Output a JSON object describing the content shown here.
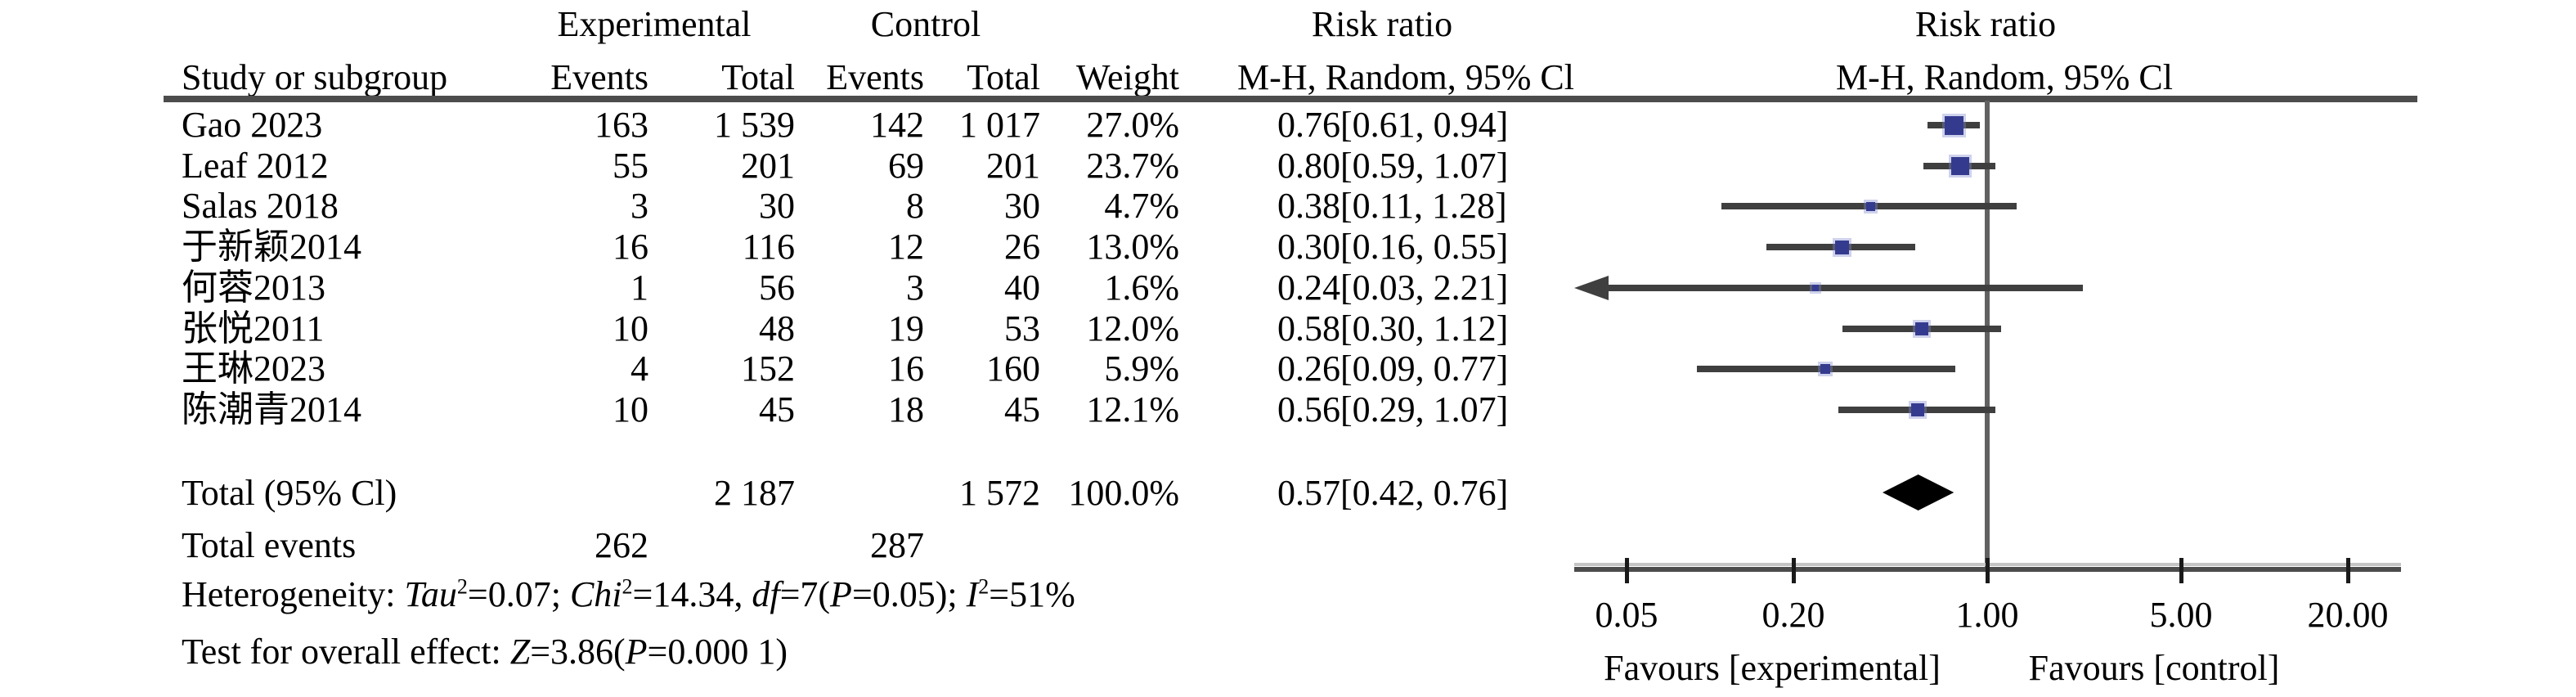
{
  "table": {
    "group_headers": {
      "experimental": "Experimental",
      "control": "Control",
      "risk_ratio_left": "Risk ratio",
      "risk_ratio_right": "Risk ratio"
    },
    "columns": {
      "study": "Study or subgroup",
      "events_exp": "Events",
      "total_exp": "Total",
      "events_ctrl": "Events",
      "total_ctrl": "Total",
      "weight": "Weight",
      "mh_left": "M-H, Random, 95% Cl",
      "mh_right": "M-H, Random, 95% Cl"
    }
  },
  "chart_data": {
    "type": "forest",
    "effect_measure": "Risk ratio",
    "method": "M-H, Random, 95% Cl",
    "x_scale": "log",
    "x_ticks": [
      "0.05",
      "0.20",
      "1.00",
      "5.00",
      "20.00"
    ],
    "x_tick_values": [
      0.05,
      0.2,
      1.0,
      5.0,
      20.0
    ],
    "axis_range": [
      0.05,
      20.0
    ],
    "null_line": 1.0,
    "studies": [
      {
        "study": "Gao 2023",
        "exp_events": "163",
        "exp_total": "1 539",
        "ctrl_events": "142",
        "ctrl_total": "1 017",
        "weight": "27.0%",
        "weight_value": 27.0,
        "rr": 0.76,
        "ci_low": 0.61,
        "ci_high": 0.94,
        "ci_label": "0.76[0.61, 0.94]",
        "marker_size": 23
      },
      {
        "study": "Leaf 2012",
        "exp_events": "55",
        "exp_total": "201",
        "ctrl_events": "69",
        "ctrl_total": "201",
        "weight": "23.7%",
        "weight_value": 23.7,
        "rr": 0.8,
        "ci_low": 0.59,
        "ci_high": 1.07,
        "ci_label": "0.80[0.59, 1.07]",
        "marker_size": 22
      },
      {
        "study": "Salas 2018",
        "exp_events": "3",
        "exp_total": "30",
        "ctrl_events": "8",
        "ctrl_total": "30",
        "weight": "4.7%",
        "weight_value": 4.7,
        "rr": 0.38,
        "ci_low": 0.11,
        "ci_high": 1.28,
        "ci_label": "0.38[0.11, 1.28]",
        "marker_size": 11
      },
      {
        "study": "于新颖2014",
        "exp_events": "16",
        "exp_total": "116",
        "ctrl_events": "12",
        "ctrl_total": "26",
        "weight": "13.0%",
        "weight_value": 13.0,
        "rr": 0.3,
        "ci_low": 0.16,
        "ci_high": 0.55,
        "ci_label": "0.30[0.16, 0.55]",
        "marker_size": 17
      },
      {
        "study": "何蓉2013",
        "exp_events": "1",
        "exp_total": "56",
        "ctrl_events": "3",
        "ctrl_total": "40",
        "weight": "1.6%",
        "weight_value": 1.6,
        "rr": 0.24,
        "ci_low": 0.03,
        "ci_high": 2.21,
        "ci_label": "0.24[0.03, 2.21]",
        "marker_size": 8,
        "arrow_left": true
      },
      {
        "study": "张悦2011",
        "exp_events": "10",
        "exp_total": "48",
        "ctrl_events": "19",
        "ctrl_total": "53",
        "weight": "12.0%",
        "weight_value": 12.0,
        "rr": 0.58,
        "ci_low": 0.3,
        "ci_high": 1.12,
        "ci_label": "0.58[0.30, 1.12]",
        "marker_size": 16
      },
      {
        "study": "王琳2023",
        "exp_events": "4",
        "exp_total": "152",
        "ctrl_events": "16",
        "ctrl_total": "160",
        "weight": "5.9%",
        "weight_value": 5.9,
        "rr": 0.26,
        "ci_low": 0.09,
        "ci_high": 0.77,
        "ci_label": "0.26[0.09, 0.77]",
        "marker_size": 12
      },
      {
        "study": "陈潮青2014",
        "exp_events": "10",
        "exp_total": "45",
        "ctrl_events": "18",
        "ctrl_total": "45",
        "weight": "12.1%",
        "weight_value": 12.1,
        "rr": 0.56,
        "ci_low": 0.29,
        "ci_high": 1.07,
        "ci_label": "0.56[0.29, 1.07]",
        "marker_size": 16
      }
    ],
    "total": {
      "label": "Total (95% Cl)",
      "exp_total": "2 187",
      "ctrl_total": "1 572",
      "weight": "100.0%",
      "rr": 0.57,
      "ci_low": 0.42,
      "ci_high": 0.76,
      "ci_label": "0.57[0.42, 0.76]"
    },
    "total_events": {
      "label": "Total events",
      "exp": "262",
      "ctrl": "287"
    },
    "heterogeneity_plain": "Heterogeneity: Tau²=0.07; Chi²=14.34, df=7(P=0.05); I²=51%",
    "heterogeneity_segments": [
      {
        "t": "Heterogeneity: "
      },
      {
        "t": "Tau",
        "i": true
      },
      {
        "t": "2",
        "sup": true
      },
      {
        "t": "=0.07; "
      },
      {
        "t": "Chi",
        "i": true
      },
      {
        "t": "2",
        "sup": true
      },
      {
        "t": "=14.34, "
      },
      {
        "t": "df",
        "i": true
      },
      {
        "t": "=7("
      },
      {
        "t": "P",
        "i": true
      },
      {
        "t": "=0.05); "
      },
      {
        "t": "I",
        "i": true
      },
      {
        "t": "2",
        "sup": true
      },
      {
        "t": "=51%"
      }
    ],
    "overall_effect_plain": "Test for overall effect: Z=3.86(P=0.000 1)",
    "overall_effect_segments": [
      {
        "t": "Test for overall effect: "
      },
      {
        "t": "Z",
        "i": true
      },
      {
        "t": "=3.86("
      },
      {
        "t": "P",
        "i": true
      },
      {
        "t": "=0.000 1)"
      }
    ],
    "favours_left": "Favours [experimental]",
    "favours_right": "Favours [control]",
    "colors": {
      "marker": "#343b8f",
      "ci_line": "#3f3f3f",
      "diamond": "#000000",
      "axis": "#4c4c4c",
      "null_line": "#616161",
      "text": "#000000"
    }
  }
}
